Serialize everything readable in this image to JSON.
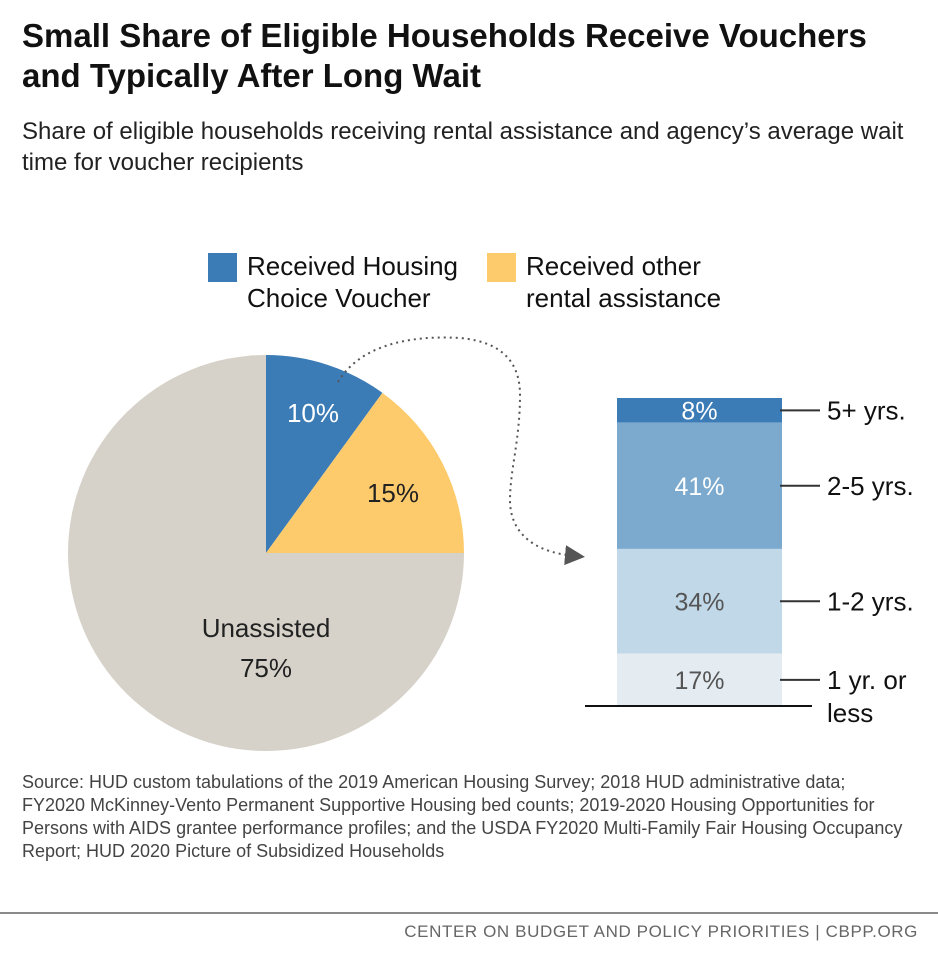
{
  "header": {
    "title": "Small Share of Eligible Households Receive Vouchers and Typically After Long Wait",
    "subtitle": "Share of eligible households receiving rental assistance and agency’s average wait time for voucher recipients"
  },
  "legend": {
    "items": [
      {
        "label": "Received Housing Choice Voucher",
        "color": "#3b7bb6"
      },
      {
        "label": "Received other rental assistance",
        "color": "#fdcb6c"
      }
    ]
  },
  "chart_data": [
    {
      "type": "pie",
      "slices": [
        {
          "name": "Received Housing Choice Voucher",
          "value": 10,
          "label": "10%",
          "color": "#3b7bb6"
        },
        {
          "name": "Received other rental assistance",
          "value": 15,
          "label": "15%",
          "color": "#fdcb6c"
        },
        {
          "name": "Unassisted",
          "value": 75,
          "label": "75%",
          "color": "#d6d2c9"
        }
      ]
    },
    {
      "type": "bar",
      "stacked": true,
      "title": "Average wait time for voucher recipients",
      "segments": [
        {
          "category": "5+ yrs.",
          "value": 8,
          "label": "8%",
          "color": "#3b7bb6",
          "text_color": "#ffffff"
        },
        {
          "category": "2-5 yrs.",
          "value": 41,
          "label": "41%",
          "color": "#7caace",
          "text_color": "#ffffff"
        },
        {
          "category": "1-2 yrs.",
          "value": 34,
          "label": "34%",
          "color": "#c1d8e8",
          "text_color": "#555555"
        },
        {
          "category": "1 yr. or less",
          "value": 17,
          "label": "17%",
          "color": "#e4ecf2",
          "text_color": "#555555"
        }
      ]
    }
  ],
  "source": "Source: HUD custom tabulations of the 2019 American Housing Survey; 2018 HUD administrative data; FY2020 McKinney-Vento Permanent Supportive Housing bed counts; 2019-2020 Housing Opportunities for Persons with AIDS grantee performance profiles; and the USDA FY2020 Multi-Family Fair Housing Occupancy Report; HUD 2020 Picture of Subsidized Households",
  "footer": "CENTER ON BUDGET AND POLICY PRIORITIES | CBPP.ORG"
}
